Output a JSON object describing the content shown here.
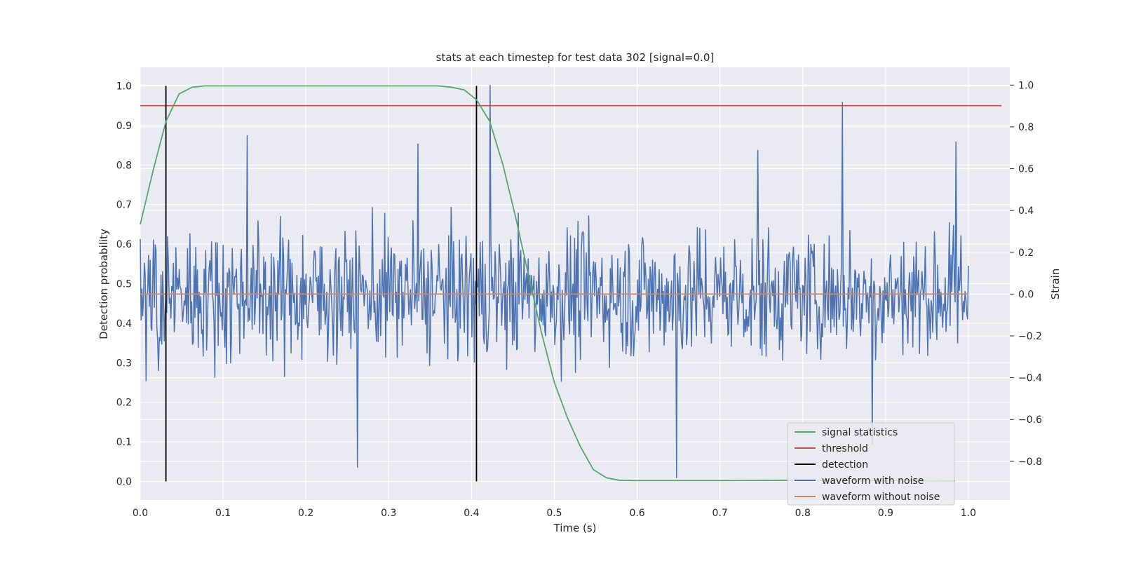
{
  "chart_data": {
    "type": "line",
    "title": "stats at each timestep for test data 302 [signal=0.0]",
    "xlabel": "Time (s)",
    "ylabel": "Detection probability",
    "y2label": "Strain",
    "xlim": [
      0.0,
      1.05
    ],
    "ylim": [
      -0.047,
      1.047
    ],
    "y2lim": [
      -0.985,
      1.085
    ],
    "xticks": [
      0.0,
      0.1,
      0.2,
      0.3,
      0.4,
      0.5,
      0.6,
      0.7,
      0.8,
      0.9,
      1.0
    ],
    "yticks": [
      0.0,
      0.1,
      0.2,
      0.3,
      0.4,
      0.5,
      0.6,
      0.7,
      0.8,
      0.9,
      1.0
    ],
    "y2ticks": [
      -0.8,
      -0.6,
      -0.4,
      -0.2,
      0.0,
      0.2,
      0.4,
      0.6,
      0.8,
      1.0
    ],
    "grid": true,
    "legend_position": "lower right",
    "colors": {
      "signal": "#55a868",
      "threshold": "#c44e52",
      "detection": "#000000",
      "noisy": "#4c72b0",
      "clean": "#dd8452",
      "plot_bg": "#eaeaf2",
      "grid": "#ffffff"
    },
    "series": [
      {
        "name": "signal statistics",
        "axis": "left",
        "x": [
          0.0,
          0.016,
          0.031,
          0.047,
          0.063,
          0.078,
          0.1,
          0.2,
          0.3,
          0.36,
          0.375,
          0.391,
          0.406,
          0.422,
          0.438,
          0.453,
          0.469,
          0.484,
          0.5,
          0.516,
          0.531,
          0.547,
          0.563,
          0.578,
          0.594,
          0.625,
          0.7,
          0.8,
          0.9,
          0.984
        ],
        "y": [
          0.65,
          0.79,
          0.91,
          0.98,
          0.997,
          1.0,
          1.0,
          1.0,
          1.0,
          1.0,
          0.997,
          0.99,
          0.965,
          0.91,
          0.8,
          0.67,
          0.52,
          0.38,
          0.25,
          0.16,
          0.09,
          0.03,
          0.009,
          0.003,
          0.002,
          0.002,
          0.002,
          0.003,
          0.002,
          0.001
        ]
      },
      {
        "name": "threshold",
        "axis": "left",
        "x": [
          0.0,
          1.04
        ],
        "y": [
          0.95,
          0.95
        ]
      },
      {
        "name": "detection",
        "axis": "left",
        "type": "vlines",
        "x": [
          0.031,
          0.406
        ],
        "y": [
          0.0,
          1.0
        ]
      },
      {
        "name": "waveform with noise",
        "axis": "right",
        "x_start": 0.0,
        "x_end": 1.0,
        "points": 1000,
        "amplitude_range": [
          -0.92,
          1.0
        ],
        "peaks": [
          {
            "x": 0.422,
            "y": 1.0
          },
          {
            "x": 0.848,
            "y": 0.92
          },
          {
            "x": 0.648,
            "y": -0.88
          },
          {
            "x": 0.262,
            "y": -0.83
          },
          {
            "x": 0.884,
            "y": -0.72
          },
          {
            "x": 0.129,
            "y": 0.76
          },
          {
            "x": 0.335,
            "y": 0.72
          },
          {
            "x": 0.746,
            "y": 0.69
          },
          {
            "x": 0.985,
            "y": 0.73
          }
        ]
      },
      {
        "name": "waveform without noise",
        "axis": "right",
        "x": [
          0.0,
          1.0
        ],
        "y": [
          0.0,
          0.0
        ]
      }
    ]
  }
}
